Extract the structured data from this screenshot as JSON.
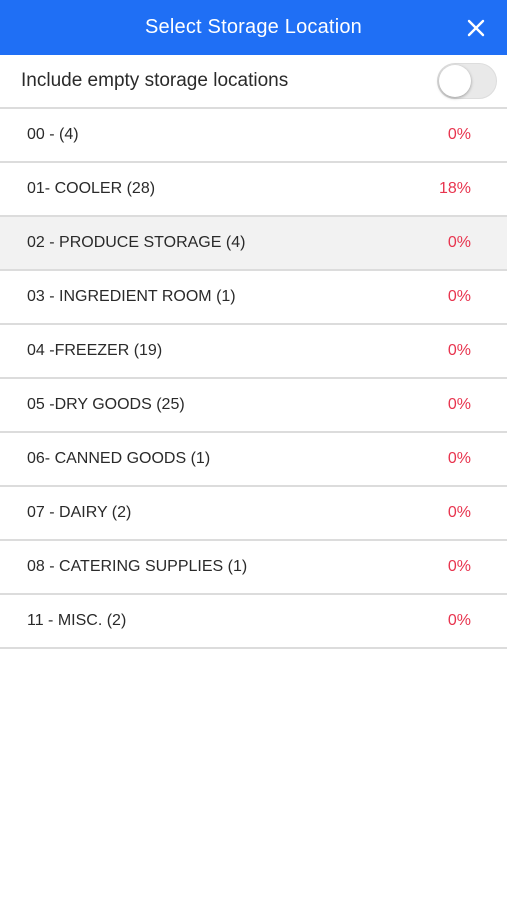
{
  "header": {
    "title": "Select Storage Location",
    "close_icon": "close-icon"
  },
  "toggle": {
    "label": "Include empty storage locations",
    "on": false
  },
  "colors": {
    "header_bg": "#1f6ff5",
    "percent": "#e8344e",
    "selected_row_bg": "#f2f2f2"
  },
  "locations": [
    {
      "label": "00 - (4)",
      "percent": "0%",
      "selected": false
    },
    {
      "label": "01- COOLER (28)",
      "percent": "18%",
      "selected": false
    },
    {
      "label": "02 - PRODUCE STORAGE (4)",
      "percent": "0%",
      "selected": true
    },
    {
      "label": "03 - INGREDIENT ROOM (1)",
      "percent": "0%",
      "selected": false
    },
    {
      "label": "04 -FREEZER (19)",
      "percent": "0%",
      "selected": false
    },
    {
      "label": "05 -DRY GOODS (25)",
      "percent": "0%",
      "selected": false
    },
    {
      "label": "06- CANNED GOODS (1)",
      "percent": "0%",
      "selected": false
    },
    {
      "label": "07 - DAIRY (2)",
      "percent": "0%",
      "selected": false
    },
    {
      "label": "08 - CATERING SUPPLIES (1)",
      "percent": "0%",
      "selected": false
    },
    {
      "label": "11 - MISC. (2)",
      "percent": "0%",
      "selected": false
    }
  ]
}
